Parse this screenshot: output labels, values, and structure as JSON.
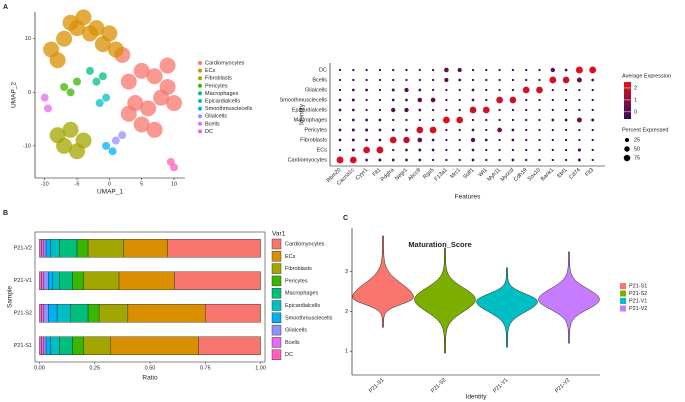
{
  "chart_data": [
    {
      "type": "scatter",
      "panel_label": "A",
      "xlabel": "UMAP_1",
      "ylabel": "UMAP_2",
      "xlim": [
        -11.5,
        11.7
      ],
      "ylim": [
        -16,
        15
      ],
      "xticks": [
        -10,
        -5,
        0,
        5,
        10
      ],
      "yticks": [
        -10,
        0,
        10
      ],
      "series": [
        {
          "name": "Cardiomyocytes",
          "color": "#F8766D",
          "x": [
            3,
            5,
            7,
            9,
            4,
            6,
            8,
            10,
            5,
            7,
            2,
            3,
            9
          ],
          "y": [
            2,
            4,
            3,
            1,
            -2,
            -3,
            -1,
            -2,
            -6,
            -7,
            7,
            -4,
            5
          ]
        },
        {
          "name": "ECs",
          "color": "#D89000",
          "x": [
            -9,
            -7,
            -5,
            -3,
            -1,
            1,
            -6,
            -4,
            -2,
            -8,
            0
          ],
          "y": [
            8,
            10,
            12,
            11,
            9,
            8,
            13,
            14,
            12,
            6,
            11
          ]
        },
        {
          "name": "Fibroblasts",
          "color": "#A3A500",
          "x": [
            -8,
            -6,
            -4,
            -7,
            -5
          ],
          "y": [
            -8,
            -7,
            -9,
            -10,
            -11
          ]
        },
        {
          "name": "Pericytes",
          "color": "#39B600",
          "x": [
            -7,
            -6,
            -5
          ],
          "y": [
            1,
            0,
            2
          ]
        },
        {
          "name": "Macrophages",
          "color": "#00BF7D",
          "x": [
            -3,
            -2,
            -1
          ],
          "y": [
            4,
            2,
            3
          ]
        },
        {
          "name": "Epicardialcells",
          "color": "#00BFC4",
          "x": [
            -1.5,
            -0.5
          ],
          "y": [
            -2,
            -1
          ]
        },
        {
          "name": "Smoothmusclecells",
          "color": "#00B0F6",
          "x": [
            -0.5,
            0.5
          ],
          "y": [
            -10,
            -11
          ]
        },
        {
          "name": "Glialcells",
          "color": "#9590FF",
          "x": [
            1,
            2
          ],
          "y": [
            -9,
            -8
          ]
        },
        {
          "name": "Bcells",
          "color": "#E76BF3",
          "x": [
            -10,
            -9.5
          ],
          "y": [
            -1,
            -3
          ]
        },
        {
          "name": "DC",
          "color": "#FF62BC",
          "x": [
            9.5,
            10
          ],
          "y": [
            -13,
            -14
          ]
        }
      ]
    },
    {
      "type": "dot",
      "xlabel": "Features",
      "ylabel": "Identity",
      "features": [
        "Rbm20",
        "Cacna1c",
        "Cyyr1",
        "Flt1",
        "Pdgfra",
        "Negr1",
        "Abcc9",
        "Rgs5",
        "F13a1",
        "Mrc1",
        "Sulf1",
        "Wt1",
        "Myh11",
        "Myocd",
        "Cdh19",
        "Sox10",
        "Bank1",
        "Ebf1",
        "Cd74",
        "Flt3"
      ],
      "identities": [
        "Cardiomyocytes",
        "ECs",
        "Fibroblasts",
        "Pericytes",
        "Macrophages",
        "Epicardialcells",
        "Smoothmusclecells",
        "Glialcells",
        "Bcells",
        "DC"
      ],
      "expression": [
        [
          2.3,
          2.1,
          -0.3,
          -0.2,
          -0.4,
          -0.3,
          -0.3,
          -0.4,
          -0.4,
          -0.4,
          -0.3,
          -0.4,
          -0.4,
          -0.3,
          -0.4,
          -0.4,
          -0.4,
          -0.4,
          -0.3,
          -0.4
        ],
        [
          -0.4,
          -0.2,
          2.2,
          2.0,
          -0.4,
          -0.3,
          -0.2,
          -0.3,
          -0.4,
          -0.4,
          -0.3,
          -0.4,
          -0.4,
          -0.4,
          -0.4,
          -0.4,
          -0.4,
          -0.4,
          -0.2,
          -0.4
        ],
        [
          -0.3,
          -0.2,
          -0.3,
          -0.3,
          2.1,
          1.8,
          0.4,
          -0.3,
          -0.4,
          -0.4,
          0.3,
          -0.3,
          -0.4,
          -0.3,
          -0.4,
          -0.4,
          -0.4,
          -0.4,
          -0.4,
          -0.4
        ],
        [
          -0.3,
          -0.2,
          -0.2,
          -0.3,
          -0.3,
          -0.3,
          2.0,
          2.2,
          -0.4,
          -0.4,
          -0.3,
          -0.4,
          0.5,
          -0.3,
          -0.4,
          -0.4,
          -0.4,
          -0.4,
          -0.4,
          -0.4
        ],
        [
          -0.4,
          -0.3,
          -0.3,
          -0.3,
          -0.4,
          -0.4,
          -0.4,
          -0.4,
          2.3,
          2.1,
          -0.4,
          -0.4,
          -0.4,
          -0.4,
          -0.4,
          -0.4,
          -0.3,
          -0.3,
          0.6,
          -0.2
        ],
        [
          -0.3,
          -0.3,
          -0.4,
          -0.4,
          0.2,
          0.1,
          -0.3,
          -0.4,
          -0.4,
          -0.4,
          2.0,
          2.2,
          -0.4,
          -0.4,
          -0.4,
          -0.4,
          -0.4,
          -0.4,
          -0.4,
          -0.4
        ],
        [
          -0.3,
          -0.2,
          -0.4,
          -0.4,
          -0.3,
          -0.3,
          0.3,
          0.4,
          -0.4,
          -0.4,
          -0.3,
          -0.4,
          2.1,
          2.0,
          -0.4,
          -0.4,
          -0.4,
          -0.4,
          -0.4,
          -0.4
        ],
        [
          -0.4,
          -0.3,
          -0.3,
          -0.4,
          -0.2,
          0.2,
          -0.3,
          -0.4,
          -0.4,
          -0.4,
          -0.3,
          -0.4,
          -0.4,
          -0.4,
          2.2,
          2.1,
          -0.4,
          -0.4,
          -0.4,
          -0.4
        ],
        [
          -0.4,
          -0.4,
          -0.4,
          -0.4,
          -0.4,
          -0.4,
          -0.4,
          -0.4,
          0.2,
          -0.3,
          -0.4,
          -0.4,
          -0.4,
          -0.4,
          -0.4,
          -0.4,
          2.2,
          2.0,
          0.5,
          -0.3
        ],
        [
          -0.4,
          -0.4,
          -0.4,
          -0.4,
          -0.4,
          -0.4,
          -0.4,
          -0.4,
          0.4,
          0.1,
          -0.4,
          -0.4,
          -0.4,
          -0.4,
          -0.4,
          -0.4,
          0.3,
          -0.3,
          2.3,
          2.2
        ]
      ],
      "percent": [
        [
          85,
          80,
          8,
          10,
          8,
          8,
          8,
          5,
          5,
          5,
          8,
          5,
          5,
          8,
          5,
          5,
          5,
          5,
          10,
          5
        ],
        [
          5,
          10,
          82,
          85,
          5,
          8,
          10,
          8,
          5,
          5,
          8,
          5,
          5,
          5,
          5,
          5,
          5,
          5,
          12,
          5
        ],
        [
          8,
          10,
          8,
          8,
          80,
          75,
          35,
          8,
          5,
          5,
          30,
          8,
          5,
          8,
          5,
          5,
          5,
          5,
          5,
          5
        ],
        [
          8,
          10,
          10,
          8,
          8,
          8,
          78,
          82,
          5,
          5,
          8,
          5,
          35,
          8,
          5,
          5,
          5,
          5,
          5,
          5
        ],
        [
          5,
          8,
          8,
          8,
          5,
          5,
          5,
          5,
          85,
          80,
          5,
          5,
          5,
          5,
          5,
          5,
          8,
          8,
          40,
          10
        ],
        [
          8,
          8,
          5,
          5,
          30,
          28,
          8,
          5,
          5,
          5,
          78,
          80,
          5,
          5,
          5,
          5,
          5,
          5,
          5,
          5
        ],
        [
          8,
          10,
          5,
          5,
          8,
          8,
          32,
          35,
          5,
          5,
          8,
          5,
          80,
          78,
          5,
          5,
          5,
          5,
          5,
          5
        ],
        [
          5,
          8,
          8,
          5,
          10,
          28,
          8,
          5,
          5,
          5,
          8,
          5,
          5,
          5,
          82,
          80,
          5,
          5,
          5,
          5
        ],
        [
          5,
          5,
          5,
          5,
          5,
          5,
          5,
          5,
          28,
          8,
          5,
          5,
          5,
          5,
          5,
          5,
          85,
          78,
          40,
          8
        ],
        [
          5,
          5,
          5,
          5,
          5,
          5,
          5,
          5,
          35,
          25,
          5,
          5,
          5,
          5,
          5,
          5,
          30,
          8,
          88,
          85
        ]
      ],
      "color_title": "Average Expression",
      "color_lim": [
        -0.6,
        2.5
      ],
      "color_ticks": [
        0,
        1,
        2
      ],
      "color_low": "#2e0a5e",
      "color_high": "#e8121b",
      "size_title": "Percent Expressed",
      "size_ticks": [
        25,
        50,
        75
      ]
    },
    {
      "type": "stacked_bar",
      "panel_label": "B",
      "xlabel": "Ratio",
      "ylabel": "Sample",
      "legend_title": "Var1",
      "categories": [
        "P21-S1",
        "P21-S2",
        "P21-V1",
        "P21-V2"
      ],
      "xlim": [
        -0.02,
        1.02
      ],
      "xticks": [
        {
          "value": 0,
          "label": "0.00"
        },
        0.25,
        {
          "value": 0.5,
          "label": "0.50"
        },
        0.75,
        {
          "value": 1,
          "label": "1.00"
        }
      ],
      "series": [
        {
          "name": "Cardiomyocytes",
          "color": "#F8766D",
          "values": [
            0.28,
            0.25,
            0.39,
            0.42
          ]
        },
        {
          "name": "ECs",
          "color": "#D89000",
          "values": [
            0.4,
            0.35,
            0.25,
            0.2
          ]
        },
        {
          "name": "Fibroblasts",
          "color": "#A3A500",
          "values": [
            0.12,
            0.13,
            0.16,
            0.16
          ]
        },
        {
          "name": "Pericytes",
          "color": "#39B600",
          "values": [
            0.05,
            0.05,
            0.05,
            0.05
          ]
        },
        {
          "name": "Macrophages",
          "color": "#00BF7D",
          "values": [
            0.06,
            0.08,
            0.06,
            0.08
          ]
        },
        {
          "name": "Epicardialcells",
          "color": "#00BFC4",
          "values": [
            0.04,
            0.06,
            0.03,
            0.04
          ]
        },
        {
          "name": "Smoothmusclecells",
          "color": "#00B0F6",
          "values": [
            0.02,
            0.04,
            0.02,
            0.02
          ]
        },
        {
          "name": "Glialcells",
          "color": "#9590FF",
          "values": [
            0.01,
            0.02,
            0.02,
            0.01
          ]
        },
        {
          "name": "Bcells",
          "color": "#E76BF3",
          "values": [
            0.01,
            0.01,
            0.01,
            0.01
          ]
        },
        {
          "name": "DC",
          "color": "#FF62BC",
          "values": [
            0.01,
            0.01,
            0.01,
            0.01
          ]
        }
      ]
    },
    {
      "type": "violin",
      "panel_label": "C",
      "title": "Maturation_Score",
      "xlabel": "Identity",
      "categories": [
        "P21-S1",
        "P21-S2",
        "P21-V1",
        "P21-V2"
      ],
      "colors": [
        "#F8766D",
        "#7CAE00",
        "#00BFC4",
        "#C77CFF"
      ],
      "values": [
        2.35,
        2.3,
        2.25,
        2.3
      ],
      "min": [
        1.6,
        0.95,
        1.1,
        1.2
      ],
      "max": [
        3.9,
        3.6,
        3.1,
        3.5
      ],
      "ylim": [
        0.4,
        4.1
      ],
      "yticks": [
        1,
        2,
        3
      ]
    }
  ]
}
